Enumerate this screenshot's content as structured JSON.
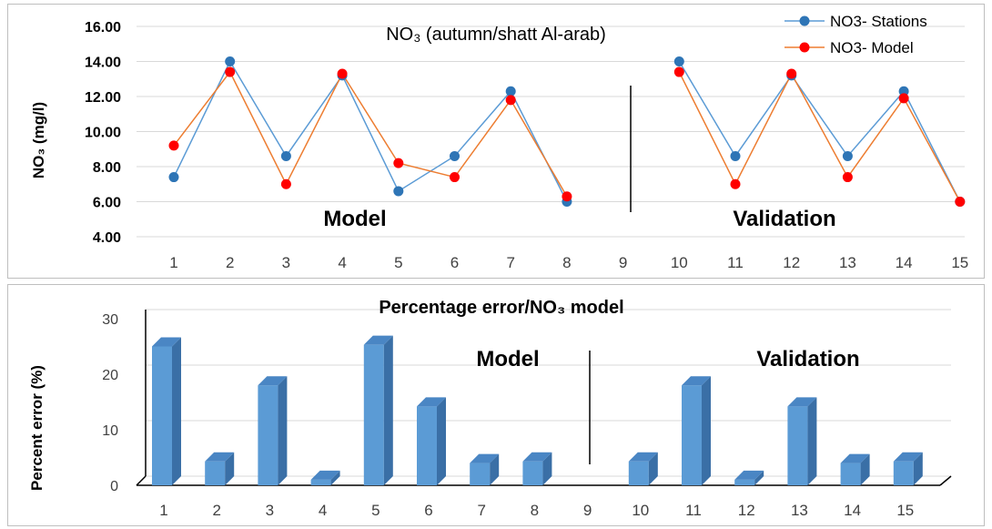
{
  "chart_data": [
    {
      "type": "line",
      "title": "NO₃ (autumn/shatt Al-arab)",
      "xlabel": "",
      "ylabel": "NO₃ (mg/l)",
      "ylim": [
        4.0,
        16.0
      ],
      "yticks": [
        "4.00",
        "6.00",
        "8.00",
        "10.00",
        "12.00",
        "14.00",
        "16.00"
      ],
      "categories": [
        "1",
        "2",
        "3",
        "4",
        "5",
        "6",
        "7",
        "8",
        "9",
        "10",
        "11",
        "12",
        "13",
        "14",
        "15"
      ],
      "grid": true,
      "legend": "top-right",
      "annotations": [
        "Model",
        "Validation"
      ],
      "series": [
        {
          "name": "NO3- Stations",
          "color": "#2e75b6",
          "values": [
            7.4,
            14.0,
            8.6,
            13.2,
            6.6,
            8.6,
            12.3,
            6.0,
            null,
            14.0,
            8.6,
            13.2,
            8.6,
            12.3,
            6.0
          ]
        },
        {
          "name": "NO3- Model",
          "color": "#ed7d31",
          "marker_color": "#ff0000",
          "values": [
            9.2,
            13.4,
            7.0,
            13.3,
            8.2,
            7.4,
            11.8,
            6.3,
            null,
            13.4,
            7.0,
            13.3,
            7.4,
            11.9,
            6.0
          ]
        }
      ]
    },
    {
      "type": "bar",
      "title": "Percentage error/NO₃ model",
      "xlabel": "",
      "ylabel": "Percent error (%)",
      "ylim": [
        0,
        30
      ],
      "yticks": [
        "0",
        "10",
        "20",
        "30"
      ],
      "categories": [
        "1",
        "2",
        "3",
        "4",
        "5",
        "6",
        "7",
        "8",
        "9",
        "10",
        "11",
        "12",
        "13",
        "14",
        "15"
      ],
      "values": [
        25,
        4.3,
        18,
        1,
        25.3,
        14.2,
        4,
        4.3,
        null,
        4.3,
        18,
        1,
        14.2,
        4,
        4.3
      ],
      "grid": true,
      "bar_color": "#5b9bd5",
      "annotations": [
        "Model",
        "Validation"
      ]
    }
  ]
}
